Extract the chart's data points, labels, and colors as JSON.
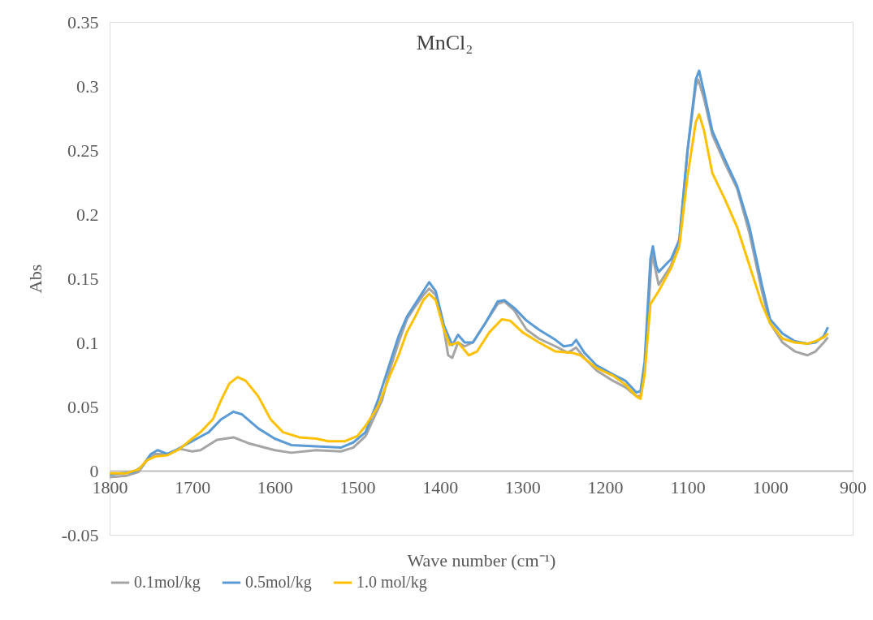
{
  "chart_data": {
    "type": "line",
    "title": "MnCl₂",
    "xlabel": "Wave number (cm⁻¹)",
    "ylabel": "Abs",
    "xlim": [
      1800,
      900
    ],
    "xticks": [
      1800,
      1700,
      1600,
      1500,
      1400,
      1300,
      1200,
      1100,
      1000,
      900
    ],
    "ylim": [
      -0.05,
      0.35
    ],
    "yticks": [
      -0.05,
      0,
      0.05,
      0.1,
      0.15,
      0.2,
      0.25,
      0.3,
      0.35
    ],
    "grid": false,
    "legend": "bottom",
    "marker": "none",
    "line_style": "solid",
    "series": [
      {
        "name": "0.1mol/kg",
        "color": "#a5a5a5",
        "x": [
          1800,
          1780,
          1765,
          1755,
          1745,
          1730,
          1715,
          1700,
          1690,
          1670,
          1650,
          1630,
          1600,
          1580,
          1550,
          1520,
          1505,
          1490,
          1470,
          1460,
          1450,
          1440,
          1430,
          1420,
          1413,
          1405,
          1395,
          1390,
          1385,
          1378,
          1370,
          1360,
          1345,
          1330,
          1322,
          1310,
          1295,
          1280,
          1260,
          1245,
          1235,
          1225,
          1210,
          1190,
          1175,
          1162,
          1157,
          1152,
          1145,
          1143,
          1140,
          1135,
          1120,
          1110,
          1100,
          1090,
          1087,
          1080,
          1070,
          1055,
          1040,
          1025,
          1010,
          1000,
          985,
          970,
          955,
          945,
          935,
          930
        ],
        "values": [
          -0.005,
          -0.004,
          -0.001,
          0.008,
          0.013,
          0.013,
          0.017,
          0.015,
          0.016,
          0.024,
          0.026,
          0.021,
          0.016,
          0.014,
          0.016,
          0.015,
          0.018,
          0.027,
          0.055,
          0.08,
          0.1,
          0.118,
          0.128,
          0.137,
          0.142,
          0.137,
          0.11,
          0.09,
          0.088,
          0.1,
          0.097,
          0.1,
          0.115,
          0.13,
          0.132,
          0.125,
          0.11,
          0.103,
          0.097,
          0.092,
          0.096,
          0.088,
          0.078,
          0.07,
          0.065,
          0.058,
          0.058,
          0.08,
          0.15,
          0.17,
          0.16,
          0.145,
          0.16,
          0.18,
          0.25,
          0.3,
          0.305,
          0.29,
          0.262,
          0.24,
          0.22,
          0.185,
          0.14,
          0.115,
          0.1,
          0.093,
          0.09,
          0.093,
          0.1,
          0.104
        ]
      },
      {
        "name": "0.5mol/kg",
        "color": "#5b9bd5",
        "x": [
          1800,
          1770,
          1760,
          1750,
          1742,
          1730,
          1720,
          1700,
          1680,
          1665,
          1650,
          1640,
          1620,
          1600,
          1580,
          1550,
          1520,
          1505,
          1490,
          1475,
          1460,
          1450,
          1440,
          1430,
          1420,
          1413,
          1405,
          1395,
          1385,
          1378,
          1370,
          1360,
          1345,
          1330,
          1322,
          1310,
          1295,
          1280,
          1260,
          1250,
          1240,
          1235,
          1225,
          1210,
          1190,
          1175,
          1162,
          1157,
          1152,
          1145,
          1142,
          1138,
          1135,
          1120,
          1110,
          1100,
          1090,
          1086,
          1080,
          1070,
          1055,
          1040,
          1025,
          1010,
          1000,
          985,
          970,
          955,
          945,
          935,
          930
        ],
        "values": [
          -0.003,
          -0.001,
          0.004,
          0.013,
          0.016,
          0.013,
          0.016,
          0.023,
          0.03,
          0.04,
          0.046,
          0.044,
          0.033,
          0.025,
          0.02,
          0.019,
          0.018,
          0.022,
          0.03,
          0.055,
          0.085,
          0.105,
          0.12,
          0.13,
          0.14,
          0.147,
          0.14,
          0.113,
          0.098,
          0.106,
          0.1,
          0.1,
          0.115,
          0.132,
          0.133,
          0.127,
          0.117,
          0.11,
          0.102,
          0.097,
          0.098,
          0.102,
          0.092,
          0.082,
          0.075,
          0.07,
          0.061,
          0.062,
          0.085,
          0.165,
          0.175,
          0.16,
          0.155,
          0.165,
          0.18,
          0.25,
          0.305,
          0.312,
          0.295,
          0.265,
          0.243,
          0.222,
          0.19,
          0.145,
          0.118,
          0.107,
          0.101,
          0.099,
          0.1,
          0.105,
          0.112
        ]
      },
      {
        "name": "1.0 mol/kg",
        "color": "#ffc000",
        "x": [
          1800,
          1780,
          1765,
          1755,
          1745,
          1730,
          1715,
          1700,
          1690,
          1675,
          1665,
          1655,
          1645,
          1635,
          1620,
          1605,
          1590,
          1570,
          1550,
          1535,
          1515,
          1500,
          1490,
          1475,
          1460,
          1450,
          1440,
          1430,
          1420,
          1413,
          1405,
          1395,
          1388,
          1378,
          1365,
          1355,
          1340,
          1325,
          1315,
          1300,
          1280,
          1260,
          1240,
          1230,
          1210,
          1190,
          1175,
          1162,
          1157,
          1152,
          1145,
          1140,
          1135,
          1120,
          1110,
          1100,
          1090,
          1086,
          1080,
          1070,
          1055,
          1040,
          1025,
          1010,
          1000,
          985,
          970,
          955,
          945,
          935,
          930
        ],
        "values": [
          -0.002,
          -0.002,
          0.001,
          0.008,
          0.011,
          0.012,
          0.017,
          0.025,
          0.03,
          0.04,
          0.055,
          0.068,
          0.073,
          0.07,
          0.058,
          0.04,
          0.03,
          0.026,
          0.025,
          0.023,
          0.023,
          0.027,
          0.035,
          0.05,
          0.075,
          0.09,
          0.108,
          0.12,
          0.133,
          0.138,
          0.133,
          0.11,
          0.098,
          0.1,
          0.09,
          0.093,
          0.108,
          0.118,
          0.117,
          0.108,
          0.1,
          0.093,
          0.092,
          0.09,
          0.08,
          0.074,
          0.067,
          0.058,
          0.056,
          0.075,
          0.13,
          0.135,
          0.14,
          0.158,
          0.175,
          0.23,
          0.272,
          0.278,
          0.265,
          0.232,
          0.212,
          0.19,
          0.16,
          0.13,
          0.115,
          0.103,
          0.1,
          0.099,
          0.101,
          0.104,
          0.107
        ]
      }
    ]
  }
}
